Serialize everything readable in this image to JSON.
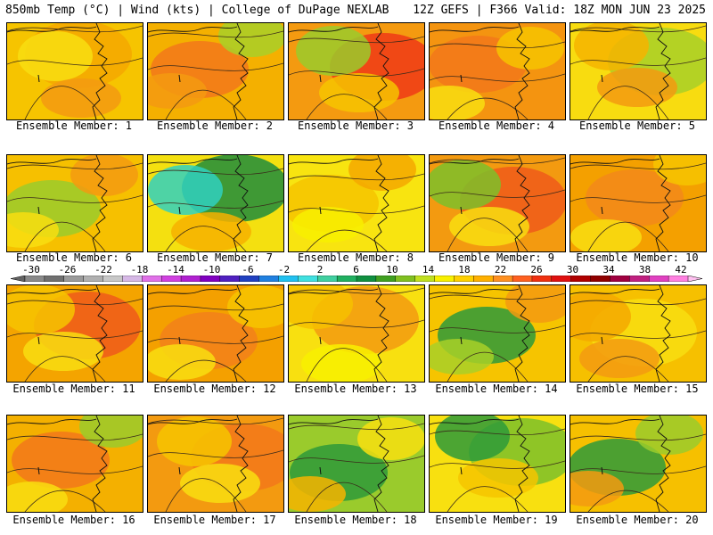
{
  "header": {
    "left": "850mb Temp (°C) | Wind (kts) | College of DuPage NEXLAB",
    "right": "12Z GEFS | F366 Valid: 18Z MON JUN 23 2025"
  },
  "colorbar": {
    "tick_labels": [
      "-30",
      "-26",
      "-22",
      "-18",
      "-14",
      "-10",
      "-6",
      "-2",
      "2",
      "6",
      "10",
      "14",
      "18",
      "22",
      "26",
      "30",
      "34",
      "38",
      "42"
    ],
    "colors": [
      "#646464",
      "#8a8a8a",
      "#707070",
      "#9a9a9a",
      "#b0b0b0",
      "#c8c8c8",
      "#d6b8e6",
      "#e070e8",
      "#d040e0",
      "#b020d0",
      "#8000c0",
      "#5020c0",
      "#2040c0",
      "#2080e0",
      "#20c0f0",
      "#40e0e0",
      "#40d0a0",
      "#20b060",
      "#109040",
      "#40a020",
      "#80c020",
      "#c0e020",
      "#f8f000",
      "#ffd000",
      "#ffb000",
      "#ff9020",
      "#ff6020",
      "#f03010",
      "#e01010",
      "#b00000",
      "#900000",
      "#a00040",
      "#c02080",
      "#e040c0",
      "#ff80e0",
      "#ffc0f0"
    ]
  },
  "members": [
    {
      "label": "Ensemble Member: 1",
      "base": "#f6c400",
      "blobs": [
        {
          "c": "#f4a800"
        },
        {
          "c": "#f8de10"
        },
        {
          "c": "#f39a10"
        }
      ]
    },
    {
      "label": "Ensemble Member: 2",
      "base": "#f4b000",
      "blobs": [
        {
          "c": "#f2781a"
        },
        {
          "c": "#a8d028"
        },
        {
          "c": "#f39a10"
        }
      ]
    },
    {
      "label": "Ensemble Member: 3",
      "base": "#f49a10",
      "blobs": [
        {
          "c": "#ee3a16"
        },
        {
          "c": "#9acb2c"
        },
        {
          "c": "#f6c400"
        }
      ]
    },
    {
      "label": "Ensemble Member: 4",
      "base": "#f49410",
      "blobs": [
        {
          "c": "#f2781a"
        },
        {
          "c": "#f6c400"
        },
        {
          "c": "#f8de10"
        }
      ]
    },
    {
      "label": "Ensemble Member: 5",
      "base": "#f8dc10",
      "blobs": [
        {
          "c": "#a8d028"
        },
        {
          "c": "#f6b400"
        },
        {
          "c": "#f39a10"
        }
      ]
    },
    {
      "label": "Ensemble Member: 6",
      "base": "#f6c000",
      "blobs": [
        {
          "c": "#9acb2c"
        },
        {
          "c": "#f39a10"
        },
        {
          "c": "#f8de10"
        }
      ]
    },
    {
      "label": "Ensemble Member: 7",
      "base": "#f4e010",
      "blobs": [
        {
          "c": "#1e8c3c"
        },
        {
          "c": "#30d0c0"
        },
        {
          "c": "#f6b000"
        }
      ]
    },
    {
      "label": "Ensemble Member: 8",
      "base": "#f8e410",
      "blobs": [
        {
          "c": "#f6c400"
        },
        {
          "c": "#f4a800"
        },
        {
          "c": "#f8f000"
        }
      ]
    },
    {
      "label": "Ensemble Member: 9",
      "base": "#f39a10",
      "blobs": [
        {
          "c": "#ee5a1a"
        },
        {
          "c": "#7cc02a"
        },
        {
          "c": "#f8de10"
        }
      ]
    },
    {
      "label": "Ensemble Member: 10",
      "base": "#f4a000",
      "blobs": [
        {
          "c": "#f2881a"
        },
        {
          "c": "#f6c400"
        },
        {
          "c": "#f8de10"
        }
      ]
    },
    {
      "label": "Ensemble Member: 11",
      "base": "#f4a400",
      "blobs": [
        {
          "c": "#ee5a1a"
        },
        {
          "c": "#f6c400"
        },
        {
          "c": "#f8de10"
        }
      ]
    },
    {
      "label": "Ensemble Member: 12",
      "base": "#f4a000",
      "blobs": [
        {
          "c": "#f2801a"
        },
        {
          "c": "#f6c400"
        },
        {
          "c": "#f8de10"
        }
      ]
    },
    {
      "label": "Ensemble Member: 13",
      "base": "#f8e010",
      "blobs": [
        {
          "c": "#f39a10"
        },
        {
          "c": "#f6c000"
        },
        {
          "c": "#f8f000"
        }
      ]
    },
    {
      "label": "Ensemble Member: 14",
      "base": "#f6c400",
      "blobs": [
        {
          "c": "#2e9a3a"
        },
        {
          "c": "#f39a10"
        },
        {
          "c": "#a8d028"
        }
      ]
    },
    {
      "label": "Ensemble Member: 15",
      "base": "#f6c000",
      "blobs": [
        {
          "c": "#f8de10"
        },
        {
          "c": "#f4a800"
        },
        {
          "c": "#f39a10"
        }
      ]
    },
    {
      "label": "Ensemble Member: 16",
      "base": "#f4b000",
      "blobs": [
        {
          "c": "#f2781a"
        },
        {
          "c": "#9acb2c"
        },
        {
          "c": "#f8de10"
        }
      ]
    },
    {
      "label": "Ensemble Member: 17",
      "base": "#f39a10",
      "blobs": [
        {
          "c": "#f2781a"
        },
        {
          "c": "#f6c400"
        },
        {
          "c": "#f8de10"
        }
      ]
    },
    {
      "label": "Ensemble Member: 18",
      "base": "#9acb2c",
      "blobs": [
        {
          "c": "#2e9a3a"
        },
        {
          "c": "#f8e010"
        },
        {
          "c": "#f6b400"
        }
      ]
    },
    {
      "label": "Ensemble Member: 19",
      "base": "#f8e010",
      "blobs": [
        {
          "c": "#7cc02a"
        },
        {
          "c": "#2e9a3a"
        },
        {
          "c": "#f6c400"
        }
      ]
    },
    {
      "label": "Ensemble Member: 20",
      "base": "#f6c000",
      "blobs": [
        {
          "c": "#2e9a3a"
        },
        {
          "c": "#9acb2c"
        },
        {
          "c": "#f39a10"
        }
      ]
    }
  ]
}
